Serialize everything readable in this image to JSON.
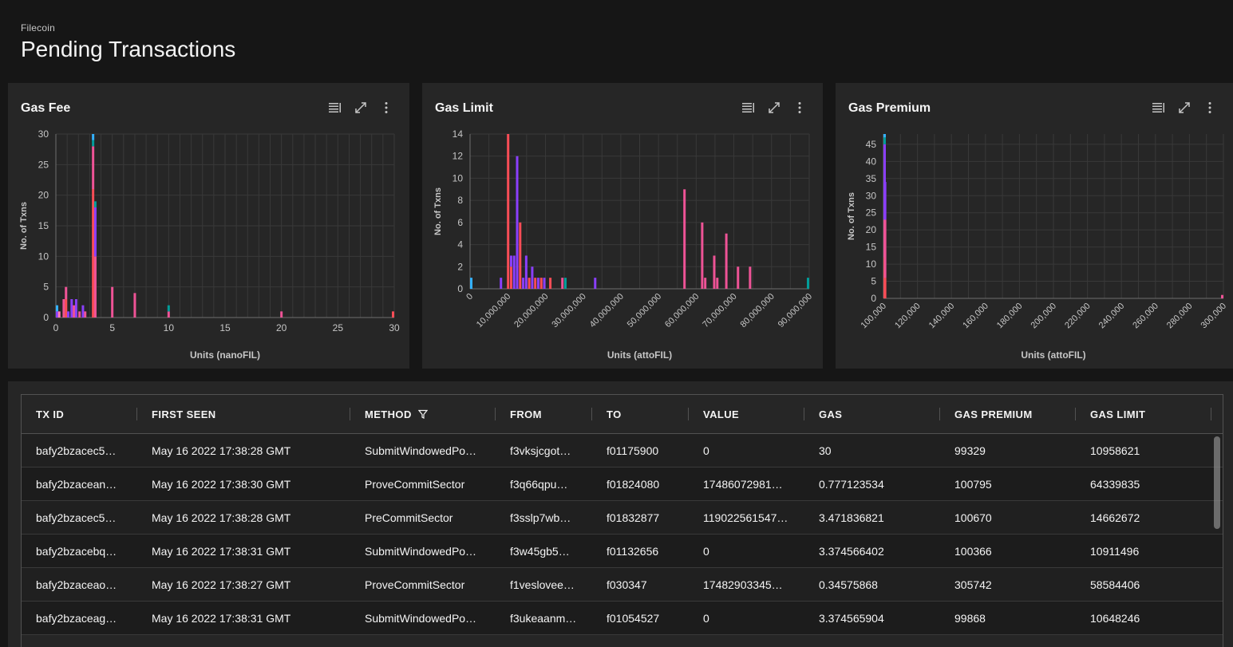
{
  "header": {
    "breadcrumb": "Filecoin",
    "title": "Pending Transactions"
  },
  "charts": [
    {
      "title": "Gas Fee",
      "tools": [
        "list-icon",
        "expand-icon",
        "overflow-menu-icon"
      ]
    },
    {
      "title": "Gas Limit",
      "tools": [
        "list-icon",
        "expand-icon",
        "overflow-menu-icon"
      ]
    },
    {
      "title": "Gas Premium",
      "tools": [
        "list-icon",
        "expand-icon",
        "overflow-menu-icon"
      ]
    }
  ],
  "colors": {
    "pink": "#ee5396",
    "red": "#fa4d56",
    "purple": "#8a3ffc",
    "teal": "#009d9a",
    "cyan": "#33b1ff",
    "salmon": "#ff7eb6"
  },
  "chart_data": [
    {
      "type": "bar",
      "title": "Gas Fee",
      "xlabel": "Units (nanoFIL)",
      "ylabel": "No. of Txns",
      "xlim": [
        0,
        30
      ],
      "ylim": [
        0,
        30
      ],
      "xticks": [
        0,
        5,
        10,
        15,
        20,
        25,
        30
      ],
      "yticks": [
        0,
        5,
        10,
        15,
        20,
        25,
        30
      ],
      "bins": [
        {
          "x": 0.1,
          "stack": [
            {
              "c": "purple",
              "v": 1
            },
            {
              "c": "cyan",
              "v": 1
            }
          ]
        },
        {
          "x": 0.3,
          "stack": [
            {
              "c": "salmon",
              "v": 1
            }
          ]
        },
        {
          "x": 0.7,
          "stack": [
            {
              "c": "pink",
              "v": 3
            }
          ]
        },
        {
          "x": 0.9,
          "stack": [
            {
              "c": "red",
              "v": 3
            },
            {
              "c": "pink",
              "v": 2
            }
          ]
        },
        {
          "x": 1.1,
          "stack": [
            {
              "c": "purple",
              "v": 1
            }
          ]
        },
        {
          "x": 1.4,
          "stack": [
            {
              "c": "purple",
              "v": 3
            }
          ]
        },
        {
          "x": 1.6,
          "stack": [
            {
              "c": "pink",
              "v": 2
            }
          ]
        },
        {
          "x": 1.8,
          "stack": [
            {
              "c": "purple",
              "v": 3
            }
          ]
        },
        {
          "x": 2.1,
          "stack": [
            {
              "c": "pink",
              "v": 1
            }
          ]
        },
        {
          "x": 2.4,
          "stack": [
            {
              "c": "purple",
              "v": 2
            }
          ]
        },
        {
          "x": 2.6,
          "stack": [
            {
              "c": "pink",
              "v": 1
            }
          ]
        },
        {
          "x": 3.3,
          "stack": [
            {
              "c": "red",
              "v": 21
            },
            {
              "c": "pink",
              "v": 7
            },
            {
              "c": "teal",
              "v": 1
            },
            {
              "c": "cyan",
              "v": 1
            }
          ]
        },
        {
          "x": 3.5,
          "stack": [
            {
              "c": "pink",
              "v": 10
            },
            {
              "c": "purple",
              "v": 8
            },
            {
              "c": "teal",
              "v": 1
            }
          ]
        },
        {
          "x": 5.0,
          "stack": [
            {
              "c": "pink",
              "v": 5
            }
          ]
        },
        {
          "x": 7.0,
          "stack": [
            {
              "c": "pink",
              "v": 4
            }
          ]
        },
        {
          "x": 10.0,
          "stack": [
            {
              "c": "pink",
              "v": 1
            },
            {
              "c": "teal",
              "v": 1
            }
          ]
        },
        {
          "x": 20.0,
          "stack": [
            {
              "c": "pink",
              "v": 1
            }
          ]
        },
        {
          "x": 30.0,
          "stack": [
            {
              "c": "red",
              "v": 1
            }
          ]
        }
      ]
    },
    {
      "type": "bar",
      "title": "Gas Limit",
      "xlabel": "Units (attoFIL)",
      "ylabel": "No. of Txns",
      "xlim": [
        0,
        90000000
      ],
      "ylim": [
        0,
        14
      ],
      "xticks": [
        "0",
        "10,000,000",
        "20,000,000",
        "30,000,000",
        "40,000,000",
        "50,000,000",
        "60,000,000",
        "70,000,000",
        "80,000,000",
        "90,000,000"
      ],
      "yticks": [
        0,
        2,
        4,
        6,
        8,
        10,
        12,
        14
      ],
      "bins": [
        {
          "x": 0,
          "stack": [
            {
              "c": "cyan",
              "v": 1
            }
          ]
        },
        {
          "x": 8200000,
          "stack": [
            {
              "c": "purple",
              "v": 1
            }
          ]
        },
        {
          "x": 10100000,
          "stack": [
            {
              "c": "red",
              "v": 14
            }
          ]
        },
        {
          "x": 10900000,
          "stack": [
            {
              "c": "red",
              "v": 2
            },
            {
              "c": "purple",
              "v": 1
            }
          ]
        },
        {
          "x": 11700000,
          "stack": [
            {
              "c": "purple",
              "v": 3
            }
          ]
        },
        {
          "x": 12500000,
          "stack": [
            {
              "c": "purple",
              "v": 12
            }
          ]
        },
        {
          "x": 13300000,
          "stack": [
            {
              "c": "red",
              "v": 6
            }
          ]
        },
        {
          "x": 14100000,
          "stack": [
            {
              "c": "purple",
              "v": 1
            }
          ]
        },
        {
          "x": 14900000,
          "stack": [
            {
              "c": "purple",
              "v": 3
            }
          ]
        },
        {
          "x": 15700000,
          "stack": [
            {
              "c": "red",
              "v": 1
            }
          ]
        },
        {
          "x": 16500000,
          "stack": [
            {
              "c": "purple",
              "v": 2
            }
          ]
        },
        {
          "x": 17300000,
          "stack": [
            {
              "c": "red",
              "v": 1
            }
          ]
        },
        {
          "x": 18100000,
          "stack": [
            {
              "c": "purple",
              "v": 1
            }
          ]
        },
        {
          "x": 18900000,
          "stack": [
            {
              "c": "red",
              "v": 1
            }
          ]
        },
        {
          "x": 19700000,
          "stack": [
            {
              "c": "purple",
              "v": 1
            }
          ]
        },
        {
          "x": 21300000,
          "stack": [
            {
              "c": "red",
              "v": 1
            }
          ]
        },
        {
          "x": 24500000,
          "stack": [
            {
              "c": "pink",
              "v": 1
            }
          ]
        },
        {
          "x": 25300000,
          "stack": [
            {
              "c": "teal",
              "v": 1
            }
          ]
        },
        {
          "x": 33200000,
          "stack": [
            {
              "c": "purple",
              "v": 1
            }
          ]
        },
        {
          "x": 56900000,
          "stack": [
            {
              "c": "pink",
              "v": 9
            }
          ]
        },
        {
          "x": 61600000,
          "stack": [
            {
              "c": "pink",
              "v": 6
            }
          ]
        },
        {
          "x": 62400000,
          "stack": [
            {
              "c": "pink",
              "v": 1
            }
          ]
        },
        {
          "x": 64800000,
          "stack": [
            {
              "c": "pink",
              "v": 3
            }
          ]
        },
        {
          "x": 65600000,
          "stack": [
            {
              "c": "pink",
              "v": 1
            }
          ]
        },
        {
          "x": 68000000,
          "stack": [
            {
              "c": "pink",
              "v": 5
            }
          ]
        },
        {
          "x": 71100000,
          "stack": [
            {
              "c": "pink",
              "v": 2
            }
          ]
        },
        {
          "x": 74300000,
          "stack": [
            {
              "c": "pink",
              "v": 2
            }
          ]
        },
        {
          "x": 90000000,
          "stack": [
            {
              "c": "teal",
              "v": 1
            }
          ]
        }
      ]
    },
    {
      "type": "bar",
      "title": "Gas Premium",
      "xlabel": "Units (attoFIL)",
      "ylabel": "No. of Txns",
      "xlim": [
        100000,
        300000
      ],
      "ylim": [
        0,
        48
      ],
      "xticks": [
        "100,000",
        "120,000",
        "140,000",
        "160,000",
        "180,000",
        "200,000",
        "220,000",
        "240,000",
        "260,000",
        "280,000",
        "300,000"
      ],
      "yticks": [
        0,
        5,
        10,
        15,
        20,
        25,
        30,
        35,
        40,
        45
      ],
      "bins": [
        {
          "x": 100200,
          "stack": [
            {
              "c": "red",
              "v": 12
            },
            {
              "c": "pink",
              "v": 11
            },
            {
              "c": "purple",
              "v": 22
            },
            {
              "c": "teal",
              "v": 2
            },
            {
              "c": "cyan",
              "v": 1
            }
          ]
        },
        {
          "x": 101000,
          "stack": [
            {
              "c": "red",
              "v": 6
            },
            {
              "c": "pink",
              "v": 17
            },
            {
              "c": "purple",
              "v": 11
            }
          ]
        },
        {
          "x": 299800,
          "stack": [
            {
              "c": "pink",
              "v": 1
            }
          ]
        }
      ]
    }
  ],
  "table": {
    "columns": [
      "TX ID",
      "FIRST SEEN",
      "METHOD",
      "FROM",
      "TO",
      "VALUE",
      "GAS",
      "GAS PREMIUM",
      "GAS LIMIT"
    ],
    "rows": [
      [
        "bafy2bzacec5…",
        "May 16 2022 17:38:28 GMT",
        "SubmitWindowedPo…",
        "f3vksjcgot…",
        "f01175900",
        "0",
        "30",
        "99329",
        "10958621"
      ],
      [
        "bafy2bzacean…",
        "May 16 2022 17:38:30 GMT",
        "ProveCommitSector",
        "f3q66qpu…",
        "f01824080",
        "17486072981…",
        "0.777123534",
        "100795",
        "64339835"
      ],
      [
        "bafy2bzacec5…",
        "May 16 2022 17:38:28 GMT",
        "PreCommitSector",
        "f3sslp7wb…",
        "f01832877",
        "119022561547…",
        "3.471836821",
        "100670",
        "14662672"
      ],
      [
        "bafy2bzacebq…",
        "May 16 2022 17:38:31 GMT",
        "SubmitWindowedPo…",
        "f3w45gb5…",
        "f01132656",
        "0",
        "3.374566402",
        "100366",
        "10911496"
      ],
      [
        "bafy2bzaceao…",
        "May 16 2022 17:38:27 GMT",
        "ProveCommitSector",
        "f1veslovee…",
        "f030347",
        "17482903345…",
        "0.34575868",
        "305742",
        "58584406"
      ],
      [
        "bafy2bzaceag…",
        "May 16 2022 17:38:31 GMT",
        "SubmitWindowedPo…",
        "f3ukeaanm…",
        "f01054527",
        "0",
        "3.374565904",
        "99868",
        "10648246"
      ]
    ]
  }
}
